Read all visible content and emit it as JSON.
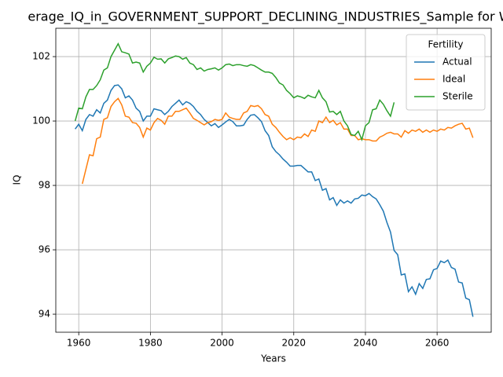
{
  "chart_data": {
    "type": "line",
    "title": "erage_IQ_in_GOVERNMENT_SUPPORT_DECLINING_INDUSTRIES_Sample for WE",
    "x_label": "Years",
    "y_label": "IQ",
    "legend_title": "Fertility",
    "legend_position": "upper right",
    "grid": true,
    "x": [
      1959,
      1960,
      1961,
      1962,
      1963,
      1964,
      1965,
      1966,
      1967,
      1968,
      1969,
      1970,
      1971,
      1972,
      1973,
      1974,
      1975,
      1976,
      1977,
      1978,
      1979,
      1980,
      1981,
      1982,
      1983,
      1984,
      1985,
      1986,
      1987,
      1988,
      1989,
      1990,
      1991,
      1992,
      1993,
      1994,
      1995,
      1996,
      1997,
      1998,
      1999,
      2000,
      2001,
      2002,
      2003,
      2004,
      2005,
      2006,
      2007,
      2008,
      2009,
      2010,
      2011,
      2012,
      2013,
      2014,
      2015,
      2016,
      2017,
      2018,
      2019,
      2020,
      2021,
      2022,
      2023,
      2024,
      2025,
      2026,
      2027,
      2028,
      2029,
      2030,
      2031,
      2032,
      2033,
      2034,
      2035,
      2036,
      2037,
      2038,
      2039,
      2040,
      2041,
      2042,
      2043,
      2044,
      2045,
      2046,
      2047,
      2048,
      2049,
      2050,
      2051,
      2052,
      2053,
      2054,
      2055,
      2056,
      2057,
      2058,
      2059,
      2060,
      2061,
      2062,
      2063,
      2064,
      2065,
      2066,
      2067,
      2068,
      2069,
      2070
    ],
    "series": [
      {
        "name": "Actual",
        "color": "#1f77b4",
        "values": [
          99.75,
          99.9,
          99.7,
          100.05,
          100.2,
          100.15,
          100.35,
          100.25,
          100.55,
          100.65,
          100.95,
          101.1,
          101.12,
          101.0,
          100.72,
          100.78,
          100.65,
          100.4,
          100.3,
          100.0,
          100.15,
          100.15,
          100.38,
          100.35,
          100.32,
          100.2,
          100.3,
          100.45,
          100.55,
          100.65,
          100.5,
          100.6,
          100.55,
          100.45,
          100.3,
          100.2,
          100.05,
          99.95,
          99.85,
          99.92,
          99.8,
          99.88,
          99.97,
          100.05,
          99.98,
          99.85,
          99.85,
          99.87,
          100.05,
          100.18,
          100.2,
          100.1,
          99.98,
          99.7,
          99.55,
          99.2,
          99.05,
          98.95,
          98.82,
          98.72,
          98.6,
          98.6,
          98.62,
          98.62,
          98.52,
          98.42,
          98.42,
          98.15,
          98.2,
          97.85,
          97.9,
          97.55,
          97.62,
          97.38,
          97.55,
          97.45,
          97.52,
          97.45,
          97.58,
          97.6,
          97.7,
          97.68,
          97.75,
          97.65,
          97.58,
          97.4,
          97.2,
          96.85,
          96.55,
          95.98,
          95.85,
          95.22,
          95.25,
          94.7,
          94.85,
          94.62,
          94.95,
          94.8,
          95.08,
          95.1,
          95.38,
          95.42,
          95.65,
          95.6,
          95.68,
          95.45,
          95.4,
          95.0,
          94.97,
          94.5,
          94.45,
          93.92
        ]
      },
      {
        "name": "Ideal",
        "color": "#ff7f0e",
        "values": [
          null,
          null,
          98.05,
          98.5,
          98.95,
          98.92,
          99.45,
          99.5,
          100.05,
          100.1,
          100.45,
          100.6,
          100.7,
          100.5,
          100.15,
          100.12,
          99.95,
          99.93,
          99.8,
          99.5,
          99.78,
          99.72,
          99.95,
          100.08,
          100.02,
          99.9,
          100.15,
          100.15,
          100.3,
          100.3,
          100.35,
          100.4,
          100.25,
          100.08,
          100.02,
          99.95,
          99.88,
          99.95,
          99.98,
          100.05,
          100.02,
          100.05,
          100.25,
          100.12,
          100.08,
          100.05,
          100.05,
          100.25,
          100.3,
          100.48,
          100.45,
          100.48,
          100.38,
          100.2,
          100.15,
          99.9,
          99.8,
          99.65,
          99.52,
          99.42,
          99.48,
          99.42,
          99.5,
          99.48,
          99.6,
          99.52,
          99.72,
          99.68,
          100.0,
          99.95,
          100.12,
          99.95,
          100.02,
          99.88,
          99.95,
          99.75,
          99.75,
          99.55,
          99.55,
          99.42,
          99.45,
          99.42,
          99.42,
          99.38,
          99.38,
          99.5,
          99.55,
          99.62,
          99.65,
          99.6,
          99.6,
          99.5,
          99.7,
          99.62,
          99.72,
          99.68,
          99.75,
          99.65,
          99.72,
          99.65,
          99.72,
          99.68,
          99.75,
          99.72,
          99.8,
          99.78,
          99.85,
          99.9,
          99.93,
          99.75,
          99.78,
          99.48
        ]
      },
      {
        "name": "Sterile",
        "color": "#2ca02c",
        "values": [
          100.0,
          100.4,
          100.38,
          100.75,
          100.98,
          100.98,
          101.1,
          101.28,
          101.58,
          101.65,
          102.0,
          102.2,
          102.4,
          102.15,
          102.12,
          102.08,
          101.8,
          101.83,
          101.8,
          101.52,
          101.7,
          101.8,
          101.98,
          101.92,
          101.93,
          101.8,
          101.93,
          101.97,
          102.02,
          102.0,
          101.92,
          101.97,
          101.8,
          101.75,
          101.6,
          101.65,
          101.55,
          101.6,
          101.62,
          101.65,
          101.58,
          101.65,
          101.75,
          101.77,
          101.72,
          101.75,
          101.75,
          101.72,
          101.7,
          101.75,
          101.72,
          101.65,
          101.58,
          101.52,
          101.52,
          101.48,
          101.35,
          101.18,
          101.12,
          100.95,
          100.85,
          100.72,
          100.78,
          100.75,
          100.7,
          100.8,
          100.75,
          100.72,
          100.95,
          100.72,
          100.6,
          100.28,
          100.3,
          100.2,
          100.3,
          100.0,
          99.85,
          99.58,
          99.55,
          99.68,
          99.42,
          99.85,
          99.95,
          100.35,
          100.38,
          100.65,
          100.52,
          100.32,
          100.15,
          100.58,
          null,
          null,
          null,
          null,
          null,
          null,
          null,
          null,
          null,
          null,
          null,
          null,
          null,
          null,
          null,
          null,
          null,
          null,
          null,
          null,
          null,
          null
        ]
      }
    ],
    "xlim": [
      1953.6,
      2075.1
    ],
    "xticks": [
      1960,
      1980,
      2000,
      2020,
      2040,
      2060
    ],
    "ylim": [
      93.44,
      102.88
    ],
    "yticks": [
      94,
      96,
      98,
      100,
      102
    ]
  }
}
